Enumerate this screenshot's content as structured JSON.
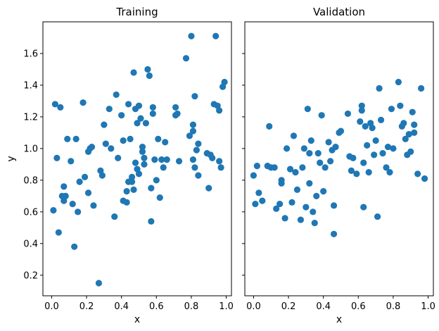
{
  "chart_data": [
    {
      "type": "scatter",
      "title": "Training",
      "xlabel": "x",
      "ylabel": "y",
      "xlim": [
        -0.05,
        1.03
      ],
      "ylim": [
        0.07,
        1.8
      ],
      "xticks": [
        0.0,
        0.2,
        0.4,
        0.6,
        0.8,
        1.0
      ],
      "xtick_labels": [
        "0.0",
        "0.2",
        "0.4",
        "0.6",
        "0.8",
        "1.0"
      ],
      "yticks": [
        0.2,
        0.4,
        0.6,
        0.8,
        1.0,
        1.2,
        1.4,
        1.6
      ],
      "ytick_labels": [
        "0.2",
        "0.4",
        "0.6",
        "0.8",
        "1.0",
        "1.2",
        "1.4",
        "1.6"
      ],
      "show_yticklabels": true,
      "color": "#1f77b4",
      "x": [
        0.01,
        0.02,
        0.03,
        0.04,
        0.05,
        0.06,
        0.07,
        0.07,
        0.08,
        0.09,
        0.11,
        0.12,
        0.13,
        0.14,
        0.15,
        0.16,
        0.18,
        0.19,
        0.21,
        0.21,
        0.22,
        0.23,
        0.24,
        0.27,
        0.28,
        0.29,
        0.3,
        0.31,
        0.33,
        0.34,
        0.36,
        0.37,
        0.38,
        0.4,
        0.41,
        0.41,
        0.43,
        0.43,
        0.44,
        0.44,
        0.45,
        0.46,
        0.46,
        0.47,
        0.47,
        0.48,
        0.48,
        0.49,
        0.49,
        0.5,
        0.5,
        0.51,
        0.52,
        0.52,
        0.53,
        0.53,
        0.54,
        0.55,
        0.56,
        0.57,
        0.57,
        0.58,
        0.58,
        0.59,
        0.6,
        0.61,
        0.62,
        0.63,
        0.64,
        0.65,
        0.66,
        0.71,
        0.71,
        0.72,
        0.73,
        0.77,
        0.79,
        0.8,
        0.81,
        0.81,
        0.81,
        0.82,
        0.82,
        0.83,
        0.84,
        0.84,
        0.89,
        0.9,
        0.91,
        0.92,
        0.93,
        0.94,
        0.95,
        0.96,
        0.96,
        0.97,
        0.98,
        0.99
      ],
      "y": [
        0.61,
        1.28,
        0.94,
        0.47,
        1.26,
        0.7,
        0.76,
        0.67,
        0.7,
        1.06,
        0.92,
        0.65,
        0.38,
        1.06,
        0.6,
        0.79,
        1.29,
        0.82,
        0.72,
        0.98,
        1.0,
        1.01,
        0.64,
        0.15,
        0.86,
        0.83,
        1.15,
        1.03,
        1.25,
        1.0,
        0.57,
        1.34,
        0.94,
        1.21,
        0.67,
        1.05,
        0.66,
        0.73,
        0.79,
        1.28,
        1.06,
        0.82,
        0.79,
        1.48,
        0.74,
        1.25,
        0.91,
        0.87,
        1.16,
        1.27,
        0.84,
        1.19,
        0.98,
        1.01,
        0.9,
        0.94,
        1.16,
        1.5,
        1.46,
        0.75,
        0.54,
        1.22,
        1.26,
        0.93,
        0.8,
        1.06,
        0.69,
        0.93,
        0.88,
        1.04,
        0.93,
        1.21,
        1.26,
        1.22,
        0.92,
        1.57,
        1.08,
        1.71,
        1.11,
        1.15,
        0.93,
        0.88,
        1.33,
        0.99,
        1.03,
        0.83,
        0.97,
        0.75,
        0.96,
        0.94,
        1.28,
        1.71,
        1.27,
        1.24,
        0.92,
        0.88,
        1.39,
        1.42
      ]
    },
    {
      "type": "scatter",
      "title": "Validation",
      "xlabel": "x",
      "ylabel": "",
      "xlim": [
        -0.05,
        1.03
      ],
      "ylim": [
        0.07,
        1.8
      ],
      "xticks": [
        0.0,
        0.2,
        0.4,
        0.6,
        0.8,
        1.0
      ],
      "xtick_labels": [
        "0.0",
        "0.2",
        "0.4",
        "0.6",
        "0.8",
        "1.0"
      ],
      "yticks": [
        0.2,
        0.4,
        0.6,
        0.8,
        1.0,
        1.2,
        1.4,
        1.6
      ],
      "ytick_labels": [],
      "show_yticklabels": false,
      "color": "#1f77b4",
      "x": [
        0.0,
        0.01,
        0.02,
        0.03,
        0.05,
        0.08,
        0.09,
        0.1,
        0.12,
        0.13,
        0.15,
        0.16,
        0.16,
        0.18,
        0.19,
        0.21,
        0.22,
        0.23,
        0.24,
        0.25,
        0.27,
        0.28,
        0.29,
        0.3,
        0.31,
        0.32,
        0.32,
        0.33,
        0.34,
        0.35,
        0.36,
        0.37,
        0.38,
        0.39,
        0.4,
        0.41,
        0.43,
        0.44,
        0.45,
        0.46,
        0.46,
        0.47,
        0.49,
        0.5,
        0.54,
        0.55,
        0.56,
        0.57,
        0.59,
        0.61,
        0.62,
        0.62,
        0.63,
        0.63,
        0.64,
        0.65,
        0.66,
        0.67,
        0.68,
        0.69,
        0.7,
        0.71,
        0.72,
        0.73,
        0.74,
        0.76,
        0.77,
        0.78,
        0.79,
        0.8,
        0.83,
        0.84,
        0.85,
        0.86,
        0.87,
        0.88,
        0.89,
        0.9,
        0.91,
        0.92,
        0.92,
        0.94,
        0.96,
        0.98
      ],
      "y": [
        0.83,
        0.65,
        0.89,
        0.72,
        0.67,
        0.89,
        1.14,
        0.88,
        0.88,
        0.62,
        0.65,
        0.8,
        0.78,
        0.56,
        1.0,
        0.87,
        0.66,
        1.08,
        0.85,
        0.74,
        0.55,
        0.88,
        1.0,
        0.63,
        1.25,
        0.78,
        0.97,
        1.05,
        0.6,
        0.53,
        0.7,
        0.97,
        0.91,
        1.21,
        0.73,
        0.88,
        1.04,
        0.92,
        0.99,
        0.64,
        0.46,
        1.01,
        1.1,
        1.11,
        1.22,
        0.95,
        0.86,
        0.94,
        0.84,
        1.17,
        1.24,
        1.27,
        0.63,
        0.91,
        1.14,
        1.02,
        0.85,
        1.16,
        1.13,
        0.96,
        1.05,
        0.57,
        1.38,
        1.18,
        0.97,
        0.88,
        1.01,
        0.85,
        1.25,
        1.0,
        1.42,
        1.27,
        1.14,
        1.16,
        1.06,
        0.96,
        1.09,
        0.98,
        1.23,
        1.1,
        1.15,
        0.84,
        1.38,
        0.81
      ]
    }
  ]
}
